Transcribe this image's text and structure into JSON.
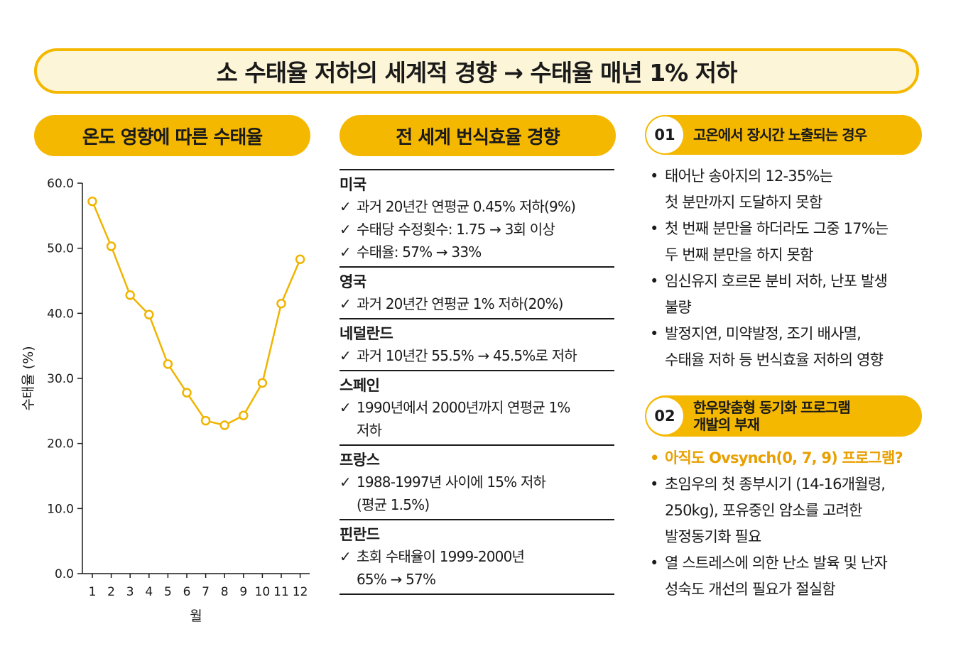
{
  "title": "소 수태율 저하의 세계적 경향 → 수태율 매년 1% 저하",
  "left_header": "온도 영향에 따른 수태율",
  "middle_header": "전 세계 번식효율 경향",
  "chart_data": {
    "type": "line",
    "x": [
      1,
      2,
      3,
      4,
      5,
      6,
      7,
      8,
      9,
      10,
      11,
      12
    ],
    "x_tick_labels": [
      "1",
      "2",
      "3",
      "4",
      "5",
      "6",
      "7",
      "8",
      "9",
      "10",
      "11",
      "12"
    ],
    "y_ticks": [
      0,
      10,
      20,
      30,
      40,
      50,
      60
    ],
    "y_tick_labels": [
      "0.0",
      "10.0",
      "20.0",
      "30.0",
      "40.0",
      "50.0",
      "60.0"
    ],
    "series": [
      {
        "values": [
          57.2,
          50.3,
          42.8,
          39.8,
          32.2,
          27.8,
          23.5,
          22.8,
          24.3,
          29.3,
          41.5,
          48.3
        ]
      }
    ],
    "xlabel": "월",
    "ylabel": "수태율 (%)",
    "ylim": [
      0,
      60
    ],
    "grid": false,
    "color": "#f0b400"
  },
  "countries": [
    {
      "name": "미국",
      "items": [
        [
          "과거 20년간 연평균 0.45% 저하(9%)"
        ],
        [
          "수태당 수정횟수: 1.75 → 3회 이상"
        ],
        [
          "수태율: 57% → 33%"
        ]
      ]
    },
    {
      "name": "영국",
      "items": [
        [
          "과거 20년간 연평균 1% 저하(20%)"
        ]
      ]
    },
    {
      "name": "네덜란드",
      "items": [
        [
          "과거 10년간 55.5% → 45.5%로 저하"
        ]
      ]
    },
    {
      "name": "스페인",
      "items": [
        [
          "1990년에서 2000년까지 연평균 1%",
          "저하"
        ]
      ]
    },
    {
      "name": "프랑스",
      "items": [
        [
          "1988-1997년 사이에 15% 저하",
          "(평균 1.5%)"
        ]
      ]
    },
    {
      "name": "핀란드",
      "items": [
        [
          "초회 수태율이 1999-2000년",
          "65% → 57%"
        ]
      ]
    }
  ],
  "check_symbol": "✓",
  "section1": {
    "number": "01",
    "title": "고온에서 장시간 노출되는 경우",
    "bullets": [
      {
        "lines": [
          "태어난 송아지의 12-35%는",
          "첫 분만까지 도달하지 못함"
        ]
      },
      {
        "lines": [
          "첫 번째 분만을 하더라도 그중 17%는",
          "두 번째 분만을 하지 못함"
        ]
      },
      {
        "lines": [
          "임신유지 호르몬 분비 저하, 난포 발생",
          "불량"
        ]
      },
      {
        "lines": [
          "발정지연, 미약발정, 조기 배사멸,",
          "수태율 저하 등 번식효율 저하의 영향"
        ]
      }
    ]
  },
  "section2": {
    "number": "02",
    "title_lines": [
      "한우맞춤형 동기화 프로그램",
      "개발의 부재"
    ],
    "bullets": [
      {
        "highlight": true,
        "lines": [
          "아직도 Ovsynch(0, 7, 9) 프로그램?"
        ]
      },
      {
        "lines": [
          "초임우의 첫 종부시기 (14-16개월령,",
          "250kg), 포유중인 암소를 고려한",
          "발정동기화 필요"
        ]
      },
      {
        "lines": [
          "열 스트레스에 의한 난소 발육 및 난자",
          "성숙도 개선의 필요가 절실함"
        ]
      }
    ]
  },
  "accent_color": "#f5b800"
}
